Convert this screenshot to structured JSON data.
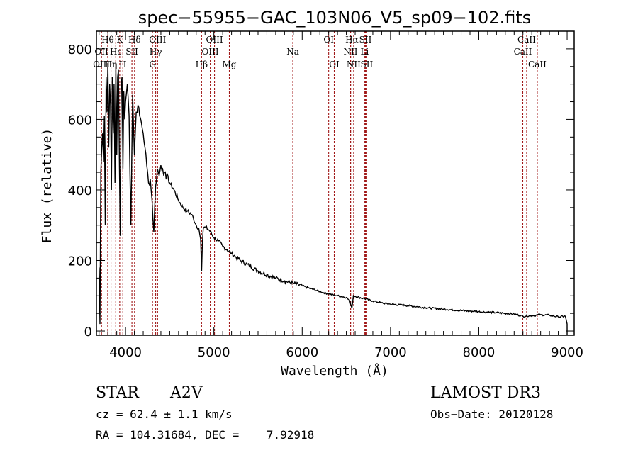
{
  "chart_data": {
    "type": "line",
    "title": "spec−55955−GAC_103N06_V5_sp09−102.fits",
    "xlabel": "Wavelength (Å)",
    "ylabel": "Flux (relative)",
    "xlim": [
      3670,
      9080
    ],
    "ylim": [
      -12,
      850
    ],
    "x_ticks": [
      4000,
      5000,
      6000,
      7000,
      8000,
      9000
    ],
    "x_tick_labels": [
      "4000",
      "5000",
      "6000",
      "7000",
      "8000",
      "9000"
    ],
    "y_ticks": [
      0,
      200,
      400,
      600,
      800
    ],
    "y_tick_labels": [
      "0",
      "200",
      "400",
      "600",
      "800"
    ],
    "grid": false,
    "legend": "none",
    "series": [
      {
        "name": "spectrum",
        "color": "#000000",
        "x": [
          3700,
          3710,
          3720,
          3730,
          3740,
          3750,
          3760,
          3770,
          3780,
          3790,
          3800,
          3810,
          3820,
          3830,
          3840,
          3850,
          3860,
          3870,
          3880,
          3890,
          3900,
          3910,
          3920,
          3930,
          3940,
          3950,
          3960,
          3970,
          3980,
          3990,
          4000,
          4020,
          4040,
          4060,
          4080,
          4100,
          4120,
          4140,
          4160,
          4180,
          4200,
          4220,
          4240,
          4260,
          4280,
          4300,
          4320,
          4340,
          4360,
          4380,
          4400,
          4420,
          4440,
          4460,
          4480,
          4500,
          4550,
          4600,
          4650,
          4700,
          4750,
          4800,
          4830,
          4850,
          4861,
          4870,
          4880,
          4900,
          4950,
          5000,
          5050,
          5100,
          5150,
          5200,
          5250,
          5300,
          5400,
          5500,
          5600,
          5700,
          5800,
          5900,
          6000,
          6100,
          6200,
          6300,
          6400,
          6500,
          6540,
          6563,
          6580,
          6600,
          6700,
          6800,
          6900,
          7000,
          7200,
          7400,
          7600,
          7800,
          8000,
          8200,
          8400,
          8500,
          8600,
          8700,
          8800,
          8900,
          8980,
          9000
        ],
        "y": [
          180,
          20,
          450,
          520,
          560,
          480,
          610,
          300,
          720,
          620,
          760,
          520,
          700,
          640,
          400,
          720,
          560,
          700,
          420,
          760,
          500,
          720,
          740,
          480,
          270,
          700,
          720,
          460,
          680,
          600,
          650,
          700,
          610,
          300,
          670,
          500,
          620,
          640,
          610,
          590,
          560,
          520,
          470,
          420,
          430,
          370,
          280,
          410,
          460,
          440,
          470,
          460,
          450,
          430,
          440,
          420,
          400,
          370,
          350,
          340,
          330,
          300,
          290,
          260,
          170,
          250,
          290,
          295,
          285,
          265,
          255,
          240,
          230,
          220,
          210,
          200,
          185,
          170,
          160,
          150,
          142,
          135,
          128,
          120,
          112,
          105,
          100,
          95,
          85,
          65,
          100,
          98,
          92,
          85,
          80,
          76,
          72,
          66,
          62,
          58,
          55,
          52,
          48,
          42,
          44,
          46,
          45,
          40,
          42,
          20
        ]
      }
    ],
    "emission_lines": [
      {
        "name": "OII",
        "wavelength": 3727,
        "row": 1
      },
      {
        "name": "OIII",
        "wavelength": 3727,
        "row": 2
      },
      {
        "name": "Hθ",
        "wavelength": 3798,
        "row": 0
      },
      {
        "name": "Hη",
        "wavelength": 3835,
        "row": 2
      },
      {
        "name": "Hε",
        "wavelength": 3889,
        "row": 1
      },
      {
        "name": "K",
        "wavelength": 3934,
        "row": 0
      },
      {
        "name": "H",
        "wavelength": 3969,
        "row": 2
      },
      {
        "name": "SII",
        "wavelength": 4072,
        "row": 1
      },
      {
        "name": "Hδ",
        "wavelength": 4102,
        "row": 0
      },
      {
        "name": "G",
        "wavelength": 4305,
        "row": 2
      },
      {
        "name": "Hγ",
        "wavelength": 4341,
        "row": 1
      },
      {
        "name": "OIII",
        "wavelength": 4363,
        "row": 0
      },
      {
        "name": "Hβ",
        "wavelength": 4861,
        "row": 2
      },
      {
        "name": "OIII",
        "wavelength": 4959,
        "row": 1
      },
      {
        "name": "OIII",
        "wavelength": 5007,
        "row": 0
      },
      {
        "name": "Mg",
        "wavelength": 5175,
        "row": 2
      },
      {
        "name": "Na",
        "wavelength": 5894,
        "row": 1
      },
      {
        "name": "OI",
        "wavelength": 6300,
        "row": 0
      },
      {
        "name": "OI",
        "wavelength": 6363,
        "row": 2
      },
      {
        "name": "NII",
        "wavelength": 6548,
        "row": 1
      },
      {
        "name": "Hα",
        "wavelength": 6563,
        "row": 0
      },
      {
        "name": "NII",
        "wavelength": 6583,
        "row": 2
      },
      {
        "name": "Li",
        "wavelength": 6707,
        "row": 1
      },
      {
        "name": "SII",
        "wavelength": 6716,
        "row": 0
      },
      {
        "name": "SII",
        "wavelength": 6731,
        "row": 2
      },
      {
        "name": "CaII",
        "wavelength": 8498,
        "row": 1
      },
      {
        "name": "CaII",
        "wavelength": 8542,
        "row": 0
      },
      {
        "name": "CaII",
        "wavelength": 8662,
        "row": 2
      }
    ],
    "line_marker_color": "#a01818"
  },
  "info": {
    "object_class": "STAR",
    "subclass": "A2V",
    "redshift_line": "cz = 62.4 ± 1.1 km/s",
    "coords_line": "RA = 104.31684, DEC =    7.92918",
    "survey": "LAMOST DR3",
    "obs_date_line": "Obs−Date: 20120128"
  }
}
